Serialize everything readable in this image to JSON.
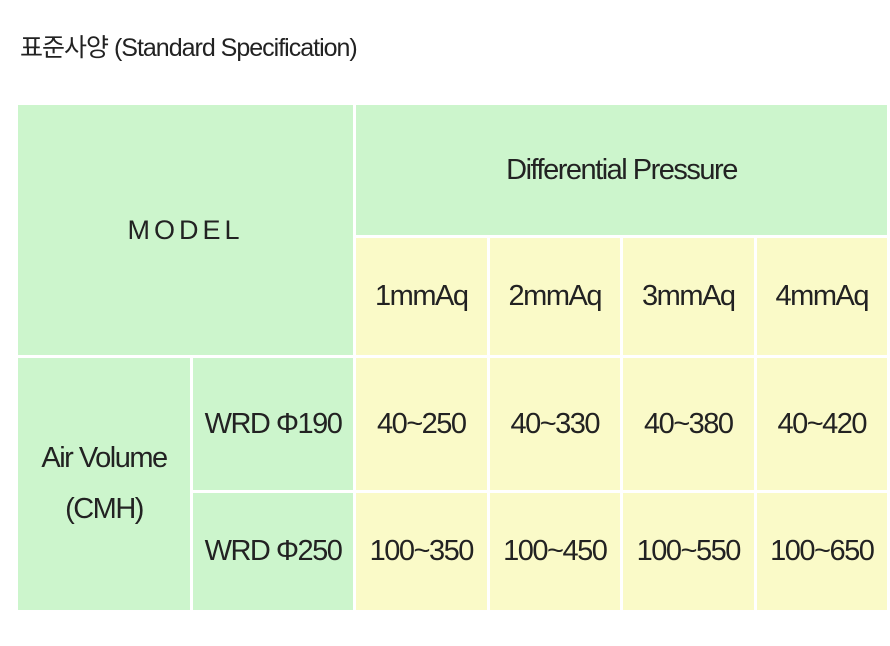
{
  "title": "표준사양 (Standard Specification)",
  "table": {
    "model_header": "MODEL",
    "pressure_header": "Differential Pressure",
    "units": [
      "1mmAq",
      "2mmAq",
      "3mmAq",
      "4mmAq"
    ],
    "group_label": [
      "Air Volume",
      "(CMH)"
    ],
    "rows": [
      {
        "model": "WRD Φ190",
        "values": [
          "40~250",
          "40~330",
          "40~380",
          "40~420"
        ]
      },
      {
        "model": "WRD Φ250",
        "values": [
          "100~350",
          "100~450",
          "100~550",
          "100~650"
        ]
      }
    ]
  }
}
